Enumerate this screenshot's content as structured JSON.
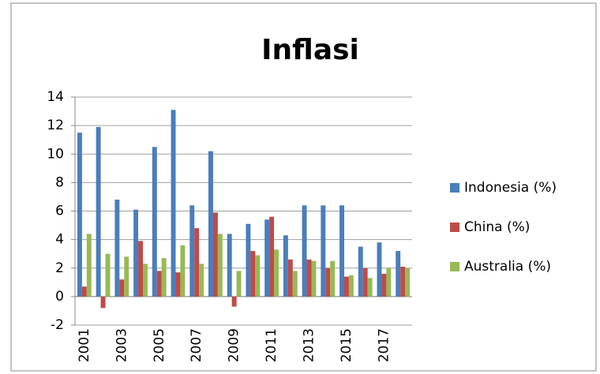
{
  "chart_data": {
    "type": "bar",
    "title": "Inflasi",
    "categories": [
      "2001",
      null,
      "2003",
      null,
      "2005",
      null,
      "2007",
      null,
      "2009",
      null,
      "2011",
      null,
      "2013",
      null,
      "2015",
      null,
      "2017",
      null
    ],
    "series": [
      {
        "name": "Indonesia (%)",
        "color": "#4a7ebb",
        "values": [
          11.5,
          11.9,
          6.8,
          6.1,
          10.5,
          13.1,
          6.4,
          10.2,
          4.4,
          5.1,
          5.4,
          4.3,
          6.4,
          6.4,
          6.4,
          3.5,
          3.8,
          3.2
        ]
      },
      {
        "name": "China (%)",
        "color": "#be4b48",
        "values": [
          0.7,
          -0.8,
          1.2,
          3.9,
          1.8,
          1.7,
          4.8,
          5.9,
          -0.7,
          3.2,
          5.6,
          2.6,
          2.6,
          2.0,
          1.4,
          2.0,
          1.6,
          2.1
        ]
      },
      {
        "name": "Australia (%)",
        "color": "#98b954",
        "values": [
          4.4,
          3.0,
          2.8,
          2.3,
          2.7,
          3.6,
          2.3,
          4.4,
          1.8,
          2.9,
          3.3,
          1.8,
          2.5,
          2.5,
          1.5,
          1.3,
          2.0,
          2.0
        ]
      }
    ],
    "ylim": [
      -2,
      14
    ],
    "yticks": [
      -2,
      0,
      2,
      4,
      6,
      8,
      10,
      12,
      14
    ],
    "grid": true,
    "legend": "right"
  }
}
